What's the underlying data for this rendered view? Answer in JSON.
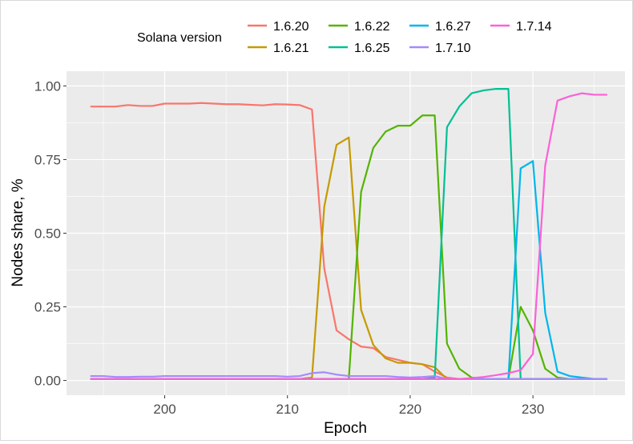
{
  "chart_data": {
    "type": "line",
    "xlabel": "Epoch",
    "ylabel": "Nodes share, %",
    "xlim": [
      192,
      237.5
    ],
    "ylim": [
      -0.05,
      1.05
    ],
    "x_ticks": [
      200,
      210,
      220,
      230
    ],
    "x_tick_labels": [
      "200",
      "210",
      "220",
      "230"
    ],
    "y_ticks": [
      0,
      0.25,
      0.5,
      0.75,
      1.0
    ],
    "y_tick_labels": [
      "0.00",
      "0.25",
      "0.50",
      "0.75",
      "1.00"
    ],
    "grid": true,
    "legend": {
      "title": "Solana version",
      "position": "top",
      "columns": [
        [
          "1.6.20",
          "1.6.21"
        ],
        [
          "1.6.22",
          "1.6.25"
        ],
        [
          "1.6.27",
          "1.7.10"
        ],
        [
          "1.7.14"
        ]
      ]
    },
    "series": [
      {
        "name": "1.6.20",
        "color": "#F8766D",
        "x": [
          194,
          195,
          196,
          197,
          198,
          199,
          200,
          201,
          202,
          203,
          204,
          205,
          206,
          207,
          208,
          209,
          210,
          211,
          212,
          213,
          214,
          215,
          216,
          217,
          218,
          219,
          220,
          221,
          222,
          223,
          224,
          225,
          226,
          227,
          228,
          229,
          230,
          231,
          232,
          233,
          234,
          235,
          236
        ],
        "y": [
          0.93,
          0.93,
          0.93,
          0.935,
          0.932,
          0.932,
          0.94,
          0.94,
          0.94,
          0.942,
          0.94,
          0.938,
          0.938,
          0.936,
          0.934,
          0.938,
          0.937,
          0.935,
          0.92,
          0.38,
          0.17,
          0.14,
          0.115,
          0.11,
          0.08,
          0.07,
          0.06,
          0.055,
          0.03,
          0.01,
          0.005,
          0.005,
          0.005,
          0.005,
          0.005,
          0.005,
          0.005,
          0.005,
          0.005,
          0.005,
          0.005,
          0.005,
          0.005
        ]
      },
      {
        "name": "1.6.21",
        "color": "#C49A00",
        "x": [
          194,
          195,
          196,
          197,
          198,
          199,
          200,
          201,
          202,
          203,
          204,
          205,
          206,
          207,
          208,
          209,
          210,
          211,
          212,
          213,
          214,
          215,
          216,
          217,
          218,
          219,
          220,
          221,
          222,
          223,
          224,
          225,
          226,
          227,
          228,
          229,
          230,
          231,
          232,
          233,
          234,
          235,
          236
        ],
        "y": [
          0.005,
          0.005,
          0.005,
          0.005,
          0.005,
          0.005,
          0.005,
          0.005,
          0.005,
          0.005,
          0.005,
          0.005,
          0.005,
          0.005,
          0.005,
          0.005,
          0.005,
          0.005,
          0.01,
          0.59,
          0.8,
          0.825,
          0.24,
          0.12,
          0.075,
          0.06,
          0.06,
          0.055,
          0.045,
          0.005,
          0.005,
          0.005,
          0.005,
          0.005,
          0.005,
          0.005,
          0.005,
          0.005,
          0.005,
          0.005,
          0.005,
          0.005,
          0.005
        ]
      },
      {
        "name": "1.6.22",
        "color": "#53B400",
        "x": [
          194,
          195,
          196,
          197,
          198,
          199,
          200,
          201,
          202,
          203,
          204,
          205,
          206,
          207,
          208,
          209,
          210,
          211,
          212,
          213,
          214,
          215,
          216,
          217,
          218,
          219,
          220,
          221,
          222,
          223,
          224,
          225,
          226,
          227,
          228,
          229,
          230,
          231,
          232,
          233,
          234,
          235,
          236
        ],
        "y": [
          0.005,
          0.005,
          0.005,
          0.005,
          0.005,
          0.005,
          0.005,
          0.005,
          0.005,
          0.005,
          0.005,
          0.005,
          0.005,
          0.005,
          0.005,
          0.005,
          0.005,
          0.005,
          0.005,
          0.005,
          0.005,
          0.005,
          0.64,
          0.79,
          0.845,
          0.865,
          0.865,
          0.9,
          0.9,
          0.125,
          0.04,
          0.01,
          0.005,
          0.005,
          0.005,
          0.25,
          0.17,
          0.04,
          0.01,
          0.005,
          0.005,
          0.005,
          0.005
        ]
      },
      {
        "name": "1.6.25",
        "color": "#00C094",
        "x": [
          194,
          195,
          196,
          197,
          198,
          199,
          200,
          201,
          202,
          203,
          204,
          205,
          206,
          207,
          208,
          209,
          210,
          211,
          212,
          213,
          214,
          215,
          216,
          217,
          218,
          219,
          220,
          221,
          222,
          223,
          224,
          225,
          226,
          227,
          228,
          229,
          230,
          231,
          232,
          233,
          234,
          235,
          236
        ],
        "y": [
          0.005,
          0.005,
          0.005,
          0.005,
          0.005,
          0.005,
          0.005,
          0.005,
          0.005,
          0.005,
          0.005,
          0.005,
          0.005,
          0.005,
          0.005,
          0.005,
          0.005,
          0.005,
          0.005,
          0.005,
          0.005,
          0.005,
          0.005,
          0.005,
          0.005,
          0.005,
          0.005,
          0.005,
          0.01,
          0.86,
          0.93,
          0.975,
          0.985,
          0.99,
          0.99,
          0.005,
          0.005,
          0.005,
          0.005,
          0.005,
          0.005,
          0.005,
          0.005
        ]
      },
      {
        "name": "1.6.27",
        "color": "#00B6EB",
        "x": [
          194,
          195,
          196,
          197,
          198,
          199,
          200,
          201,
          202,
          203,
          204,
          205,
          206,
          207,
          208,
          209,
          210,
          211,
          212,
          213,
          214,
          215,
          216,
          217,
          218,
          219,
          220,
          221,
          222,
          223,
          224,
          225,
          226,
          227,
          228,
          229,
          230,
          231,
          232,
          233,
          234,
          235,
          236
        ],
        "y": [
          0.005,
          0.005,
          0.005,
          0.005,
          0.005,
          0.005,
          0.005,
          0.005,
          0.005,
          0.005,
          0.005,
          0.005,
          0.005,
          0.005,
          0.005,
          0.005,
          0.005,
          0.005,
          0.005,
          0.005,
          0.005,
          0.005,
          0.005,
          0.005,
          0.005,
          0.005,
          0.005,
          0.005,
          0.005,
          0.005,
          0.005,
          0.005,
          0.005,
          0.005,
          0.005,
          0.72,
          0.745,
          0.23,
          0.03,
          0.015,
          0.01,
          0.005,
          0.005
        ]
      },
      {
        "name": "1.7.10",
        "color": "#A58AFF",
        "x": [
          194,
          195,
          196,
          197,
          198,
          199,
          200,
          201,
          202,
          203,
          204,
          205,
          206,
          207,
          208,
          209,
          210,
          211,
          212,
          213,
          214,
          215,
          216,
          217,
          218,
          219,
          220,
          221,
          222,
          223,
          224,
          225,
          226,
          227,
          228,
          229,
          230,
          231,
          232,
          233,
          234,
          235,
          236
        ],
        "y": [
          0.015,
          0.015,
          0.012,
          0.012,
          0.013,
          0.013,
          0.015,
          0.015,
          0.015,
          0.015,
          0.015,
          0.015,
          0.015,
          0.015,
          0.015,
          0.015,
          0.013,
          0.015,
          0.025,
          0.028,
          0.02,
          0.015,
          0.015,
          0.015,
          0.015,
          0.012,
          0.01,
          0.012,
          0.015,
          0.005,
          0.005,
          0.005,
          0.005,
          0.005,
          0.005,
          0.005,
          0.005,
          0.005,
          0.005,
          0.005,
          0.005,
          0.005,
          0.005
        ]
      },
      {
        "name": "1.7.14",
        "color": "#FB61D7",
        "x": [
          194,
          195,
          196,
          197,
          198,
          199,
          200,
          201,
          202,
          203,
          204,
          205,
          206,
          207,
          208,
          209,
          210,
          211,
          212,
          213,
          214,
          215,
          216,
          217,
          218,
          219,
          220,
          221,
          222,
          223,
          224,
          225,
          226,
          227,
          228,
          229,
          230,
          231,
          232,
          233,
          234,
          235,
          236
        ],
        "y": [
          0.005,
          0.005,
          0.005,
          0.005,
          0.005,
          0.005,
          0.005,
          0.005,
          0.005,
          0.005,
          0.005,
          0.005,
          0.005,
          0.005,
          0.005,
          0.005,
          0.005,
          0.005,
          0.005,
          0.005,
          0.005,
          0.005,
          0.005,
          0.005,
          0.005,
          0.005,
          0.005,
          0.005,
          0.005,
          0.005,
          0.005,
          0.008,
          0.012,
          0.018,
          0.025,
          0.035,
          0.09,
          0.73,
          0.95,
          0.965,
          0.975,
          0.97,
          0.97
        ]
      }
    ]
  }
}
